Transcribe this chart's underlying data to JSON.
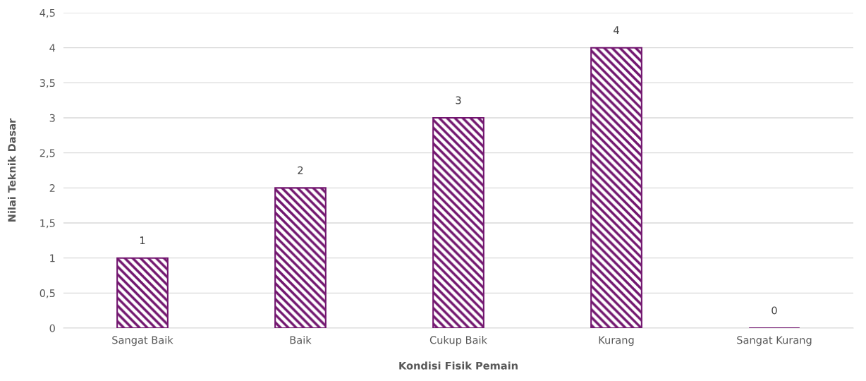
{
  "chart_data": {
    "type": "bar",
    "xlabel": "Kondisi Fisik Pemain",
    "ylabel": "Nilai Teknik Dasar",
    "categories": [
      "Sangat Baik",
      "Baik",
      "Cukup Baik",
      "Kurang",
      "Sangat Kurang"
    ],
    "values": [
      1,
      2,
      3,
      4,
      0
    ],
    "color": "#72166f",
    "ylim": [
      0,
      4.5
    ],
    "yticks": [
      0,
      {
        "value": 0.5,
        "label": "0,5"
      },
      1,
      {
        "value": 1.5,
        "label": "1,5"
      },
      2,
      {
        "value": 2.5,
        "label": "2,5"
      },
      3,
      {
        "value": 3.5,
        "label": "3,5"
      },
      4,
      {
        "value": 4.5,
        "label": "4,5"
      }
    ],
    "grid": "y",
    "data_labels": true
  }
}
